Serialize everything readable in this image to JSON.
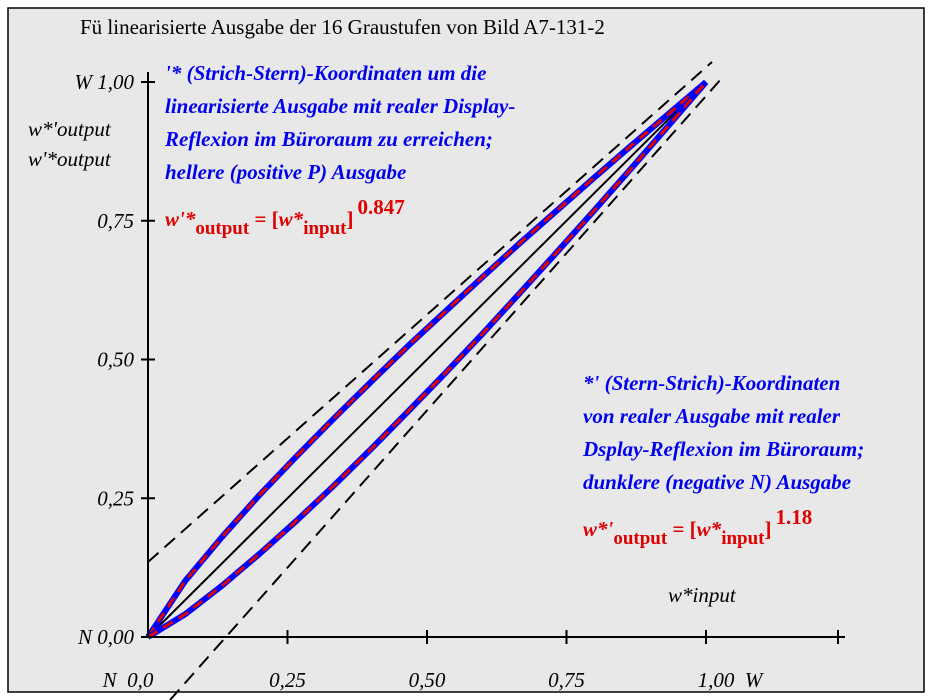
{
  "chart_data": {
    "type": "line",
    "title": "Fü linearisierte Ausgabe der 16 Graustufen von Bild A7-131-2",
    "x": [
      0,
      0.0667,
      0.1333,
      0.2,
      0.2667,
      0.3333,
      0.4,
      0.4667,
      0.5333,
      0.6,
      0.6667,
      0.7333,
      0.8,
      0.8667,
      0.9333,
      1
    ],
    "series": [
      {
        "color": "#0000ff",
        "dash_color": "#e00000",
        "values": [
          0,
          0.101,
          0.181,
          0.256,
          0.326,
          0.394,
          0.46,
          0.525,
          0.587,
          0.649,
          0.71,
          0.769,
          0.828,
          0.886,
          0.943,
          1
        ]
      },
      {
        "color": "#0000ff",
        "dash_color": "#e00000",
        "values": [
          0,
          0.041,
          0.093,
          0.15,
          0.21,
          0.273,
          0.339,
          0.407,
          0.476,
          0.547,
          0.62,
          0.694,
          0.769,
          0.845,
          0.922,
          1
        ]
      }
    ],
    "xlim": [
      0,
      1
    ],
    "ylim": [
      0,
      1
    ],
    "xticks": [
      {
        "value": 0,
        "label": "N  0,0"
      },
      {
        "value": 0.25,
        "label": "0,25"
      },
      {
        "value": 0.5,
        "label": "0,50"
      },
      {
        "value": 0.75,
        "label": "0,75"
      },
      {
        "value": 1,
        "label": "1,00  W"
      }
    ],
    "yticks": [
      {
        "value": 0,
        "label": "N 0,00"
      },
      {
        "value": 0.25,
        "label": "0,25"
      },
      {
        "value": 0.5,
        "label": "0,50"
      },
      {
        "value": 0.75,
        "label": "0,75"
      },
      {
        "value": 1,
        "label": "W 1,00"
      }
    ],
    "y_axis_labels": [
      "w*'output",
      "w'*output"
    ],
    "x_axis_label": "w*input",
    "annotations": [
      {
        "lines": [
          "'* (Strich-Stern)-Koordinaten um die",
          "linearisierte Ausgabe mit realer Display-",
          "Reflexion im Büroraum zu erreichen;",
          "hellere (positive P) Ausgabe"
        ],
        "formula": {
          "var": "w'*",
          "sub": "output",
          "mid": " = [",
          "var2": "w*",
          "sub2": "input",
          "close": "]",
          "exp": "0.847"
        }
      },
      {
        "lines": [
          "*' (Stern-Strich)-Koordinaten",
          "von realer Ausgabe mit realer",
          "Dsplay-Reflexion im Büroraum;",
          "dunklere (negative N) Ausgabe"
        ],
        "formula": {
          "var": "w*'",
          "sub": "output",
          "mid": " = [",
          "var2": "w*",
          "sub2": "input",
          "close": "]",
          "exp": "1.18"
        }
      }
    ]
  }
}
